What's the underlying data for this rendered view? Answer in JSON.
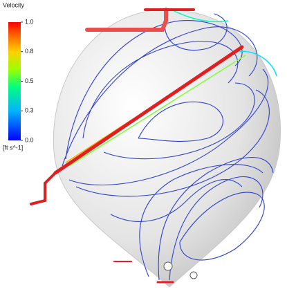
{
  "legend": {
    "title": "Velocity",
    "unit": "[ft s^-1]",
    "range": [
      0,
      1
    ],
    "ticks": [
      {
        "value": 1,
        "label": "1.0"
      },
      {
        "value": 0.75,
        "label": "0.8"
      },
      {
        "value": 0.5,
        "label": "0.5"
      },
      {
        "value": 0.25,
        "label": "0.3"
      },
      {
        "value": 0,
        "label": "0.0"
      }
    ]
  }
}
